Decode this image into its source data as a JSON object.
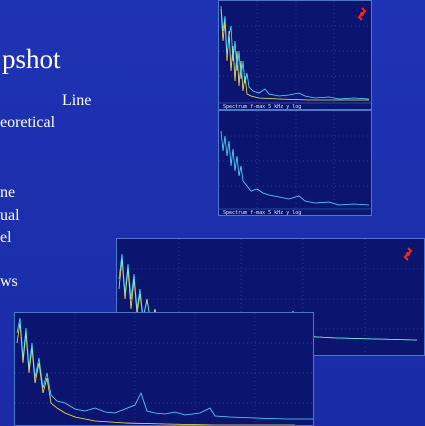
{
  "slide": {
    "title_fragment": "pshot",
    "bullets": [
      "Line",
      "eoretical",
      "ne",
      "ual",
      "el",
      "ws"
    ]
  },
  "panels": {
    "top_upper_caption": "Spectrum f-max 5 kHz y log",
    "top_lower_caption": "Spectrum f-max 5 kHz y log"
  },
  "colors": {
    "background": "#1b2fae",
    "plot_bg": "#0b1570",
    "trace_cyan": "#4fe0ff",
    "trace_yellow": "#ffe44a",
    "logo_red": "#ff2020"
  },
  "icons": [
    "logo-icon"
  ]
}
